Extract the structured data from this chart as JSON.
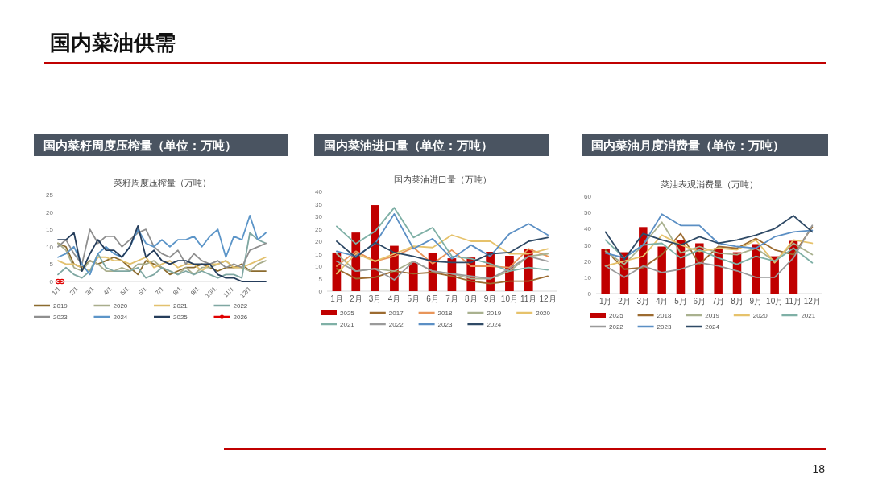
{
  "chart_data": [
    {
      "type": "line",
      "title": "国内菜籽周度压榨量（单位：万吨）",
      "subtitle": "菜籽周度压榨量（万吨）",
      "annotations": [
        "国内菜油供需",
        "18"
      ],
      "legend": "bottom",
      "x": [
        "--01-01",
        "--01-15",
        "--01-29",
        "--02-12",
        "--02-26",
        "--03-12",
        "--03-26",
        "--04-09",
        "--04-23",
        "--05-07",
        "--05-21",
        "--06-04",
        "--06-18",
        "--07-02",
        "--07-16",
        "--07-30",
        "--08-13",
        "--08-27",
        "--09-10",
        "--09-24",
        "--10-08",
        "--10-22",
        "--11-05",
        "--11-19",
        "--12-03",
        "--12-17",
        "--12-31"
      ],
      "xlim": [
        "--01-01",
        "--12-31"
      ],
      "xticks": [
        {
          "value": "--01-01",
          "label": "1/1"
        },
        {
          "value": "--02-01",
          "label": "2/1"
        },
        {
          "value": "--03-01",
          "label": "3/1"
        },
        {
          "value": "--04-01",
          "label": "4/1"
        },
        {
          "value": "--05-01",
          "label": "5/1"
        },
        {
          "value": "--06-01",
          "label": "6/1"
        },
        {
          "value": "--07-01",
          "label": "7/1"
        },
        {
          "value": "--08-01",
          "label": "8/1"
        },
        {
          "value": "--09-01",
          "label": "9/1"
        },
        {
          "value": "--10-01",
          "label": "10/1"
        },
        {
          "value": "--11-01",
          "label": "11/1"
        },
        {
          "value": "--12-01",
          "label": "12/1"
        }
      ],
      "ylim": [
        0,
        25
      ],
      "yticks": [
        0,
        5,
        10,
        15,
        20,
        25
      ],
      "series": [
        {
          "name": "2019",
          "color": "#8b6b2e",
          "values": [
            11,
            10,
            5,
            4,
            6,
            5,
            6,
            7,
            6,
            4,
            2,
            6,
            5,
            4,
            2,
            3,
            4,
            4,
            5,
            4,
            3,
            4,
            4,
            5,
            3,
            3,
            3
          ]
        },
        {
          "name": "2020",
          "color": "#a9ad8c",
          "values": [
            11,
            9,
            4,
            3,
            6,
            5,
            3,
            3,
            4,
            3,
            5,
            5,
            6,
            4,
            3,
            2,
            4,
            2,
            4,
            4,
            5,
            6,
            4,
            4,
            3,
            5,
            6
          ]
        },
        {
          "name": "2021",
          "color": "#e2c16f",
          "values": [
            6,
            5,
            5,
            4,
            3,
            7,
            7,
            6,
            6,
            5,
            6,
            7,
            4,
            5,
            6,
            4,
            5,
            5,
            3,
            5,
            5,
            6,
            4,
            4,
            5,
            6,
            7
          ]
        },
        {
          "name": "2022",
          "color": "#7fa7a2",
          "values": [
            2,
            4,
            2,
            1,
            3,
            8,
            4,
            3,
            3,
            3,
            4,
            1,
            2,
            4,
            3,
            2,
            3,
            2,
            3,
            2,
            1,
            2,
            2,
            1,
            14,
            12,
            11
          ]
        },
        {
          "name": "2023",
          "color": "#8f8f8f",
          "values": [
            10,
            12,
            8,
            5,
            15,
            11,
            13,
            13,
            10,
            12,
            14,
            15,
            10,
            8,
            7,
            9,
            5,
            8,
            6,
            5,
            6,
            4,
            5,
            4,
            9,
            10,
            11
          ]
        },
        {
          "name": "2024",
          "color": "#5c95c8",
          "values": [
            7,
            8,
            10,
            5,
            2,
            8,
            10,
            8,
            7,
            10,
            15,
            11,
            10,
            12,
            10,
            12,
            12,
            13,
            10,
            13,
            15,
            7,
            13,
            12,
            19,
            12,
            14
          ]
        },
        {
          "name": "2025",
          "color": "#253d5b",
          "values": [
            12,
            12,
            14,
            3,
            8,
            12,
            9,
            9,
            7,
            10,
            16,
            7,
            9,
            6,
            5,
            6,
            6,
            5,
            5,
            5,
            2,
            1,
            1,
            0,
            0,
            0,
            0
          ]
        },
        {
          "name": "2026",
          "color": "#e00000",
          "marker": "circle",
          "x": [
            "--01-01",
            "--01-08"
          ],
          "values": [
            0,
            0
          ]
        }
      ]
    },
    {
      "type": "bar",
      "title": "国内菜油进口量（单位：万吨）",
      "subtitle": "国内菜油进口量（万吨）",
      "legend": "bottom",
      "categories": [
        "1月",
        "2月",
        "3月",
        "4月",
        "5月",
        "6月",
        "7月",
        "8月",
        "9月",
        "10月",
        "11月",
        "12月"
      ],
      "ylim": [
        0,
        40
      ],
      "yticks": [
        0,
        5,
        10,
        15,
        20,
        25,
        30,
        35,
        40
      ],
      "series": [
        {
          "name": "2025",
          "color": "#c00000",
          "values": [
            15.5,
            23.5,
            34.5,
            18.2,
            11.5,
            15.2,
            13.2,
            13.5,
            15.8,
            14.2,
            17,
            null
          ]
        },
        {
          "name": "2017",
          "type": "line",
          "color": "#9c6b30",
          "values": [
            9,
            5,
            5.5,
            8,
            7,
            7.5,
            6,
            4,
            3,
            4,
            4,
            6
          ]
        },
        {
          "name": "2018",
          "type": "line",
          "color": "#e8955a",
          "values": [
            10,
            16,
            12,
            14,
            17.5,
            11,
            16.5,
            10,
            10,
            9.5,
            17,
            14
          ]
        },
        {
          "name": "2019",
          "type": "line",
          "color": "#a9b18f",
          "values": [
            15,
            8,
            9,
            8,
            12,
            8,
            7,
            5,
            5,
            8,
            14,
            15
          ]
        },
        {
          "name": "2020",
          "type": "line",
          "color": "#e6c26b",
          "values": [
            7,
            15,
            12,
            15,
            18,
            17.5,
            22.5,
            20,
            20,
            15,
            15,
            17
          ]
        },
        {
          "name": "2021",
          "type": "line",
          "color": "#7fb0a6",
          "values": [
            26,
            19,
            24,
            33.5,
            21.5,
            25.5,
            14,
            13,
            11,
            8,
            9.5,
            8.5
          ]
        },
        {
          "name": "2022",
          "type": "line",
          "color": "#9a9a9a",
          "values": [
            12,
            8,
            9,
            4.5,
            12,
            8,
            7,
            6,
            5,
            9,
            14,
            12
          ]
        },
        {
          "name": "2023",
          "type": "line",
          "color": "#5b8fc4",
          "values": [
            16,
            14,
            19,
            31,
            17,
            21,
            13,
            18.5,
            14,
            23,
            27,
            22.5
          ]
        },
        {
          "name": "2024",
          "type": "line",
          "color": "#2f4a66",
          "values": [
            20,
            13.5,
            19.5,
            15.5,
            14,
            12,
            11.5,
            11.5,
            15,
            15.5,
            20,
            21.5
          ]
        }
      ]
    },
    {
      "type": "bar",
      "title": "国内菜油月度消费量（单位：万吨）",
      "subtitle": "菜油表观消费量（万吨）",
      "legend": "bottom",
      "categories": [
        "1月",
        "2月",
        "3月",
        "4月",
        "5月",
        "6月",
        "7月",
        "8月",
        "9月",
        "10月",
        "11月",
        "12月"
      ],
      "ylim": [
        0,
        60
      ],
      "yticks": [
        0,
        10,
        20,
        30,
        40,
        50,
        60
      ],
      "series": [
        {
          "name": "2025",
          "color": "#c00000",
          "values": [
            27.5,
            25.5,
            41,
            29,
            33,
            31,
            28,
            25.5,
            30.5,
            23,
            32.5,
            null
          ]
        },
        {
          "name": "2018",
          "type": "line",
          "color": "#9c6b30",
          "values": [
            27,
            15,
            16,
            24,
            37,
            18,
            29,
            28,
            34,
            27,
            24,
            41
          ]
        },
        {
          "name": "2019",
          "type": "line",
          "color": "#a9b18f",
          "values": [
            26,
            18,
            30,
            44,
            25,
            29,
            25,
            24,
            28,
            20,
            31,
            24
          ]
        },
        {
          "name": "2020",
          "type": "line",
          "color": "#e6c26b",
          "values": [
            17,
            20,
            23,
            36,
            30,
            26,
            28,
            27,
            33,
            19,
            33,
            31
          ]
        },
        {
          "name": "2021",
          "type": "line",
          "color": "#7fb0a6",
          "values": [
            33,
            22,
            30,
            31,
            22,
            27,
            22,
            18,
            23,
            20,
            28,
            19
          ]
        },
        {
          "name": "2022",
          "type": "line",
          "color": "#9a9a9a",
          "values": [
            17,
            10,
            17,
            13,
            15,
            19,
            17,
            14,
            10,
            10,
            22,
            42
          ]
        },
        {
          "name": "2023",
          "type": "line",
          "color": "#5b8fc4",
          "values": [
            25,
            22,
            30,
            49,
            42,
            42,
            31,
            29,
            28,
            35,
            38,
            39
          ]
        },
        {
          "name": "2024",
          "type": "line",
          "color": "#2f4a66",
          "values": [
            38,
            21,
            37,
            33,
            30,
            35,
            31,
            33,
            36,
            40,
            48,
            38
          ]
        }
      ]
    }
  ]
}
